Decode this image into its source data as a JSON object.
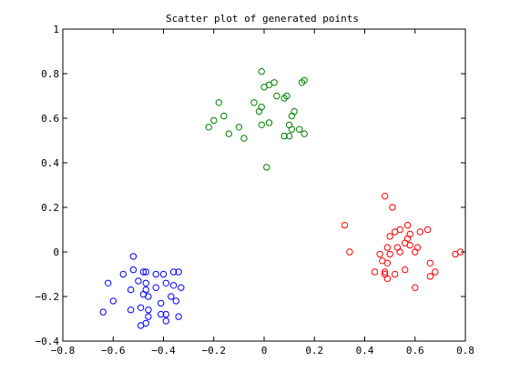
{
  "chart_data": {
    "type": "scatter",
    "title": "Scatter plot of generated points",
    "xlabel": "",
    "ylabel": "",
    "xlim": [
      -0.8,
      0.8
    ],
    "ylim": [
      -0.4,
      1.0
    ],
    "grid": false,
    "box": true,
    "marker": "open-circle",
    "x_ticks": [
      {
        "value": -0.8,
        "label": "−0.8"
      },
      {
        "value": -0.6,
        "label": "−0.6"
      },
      {
        "value": -0.4,
        "label": "−0.4"
      },
      {
        "value": -0.2,
        "label": "−0.2"
      },
      {
        "value": 0.0,
        "label": "0"
      },
      {
        "value": 0.2,
        "label": "0.2"
      },
      {
        "value": 0.4,
        "label": "0.4"
      },
      {
        "value": 0.6,
        "label": "0.6"
      },
      {
        "value": 0.8,
        "label": "0.8"
      }
    ],
    "y_ticks": [
      {
        "value": -0.4,
        "label": "−0.4"
      },
      {
        "value": -0.2,
        "label": "−0.2"
      },
      {
        "value": 0.0,
        "label": "0"
      },
      {
        "value": 0.2,
        "label": "0.2"
      },
      {
        "value": 0.4,
        "label": "0.4"
      },
      {
        "value": 0.6,
        "label": "0.6"
      },
      {
        "value": 0.8,
        "label": "0.8"
      },
      {
        "value": 1.0,
        "label": "1"
      }
    ],
    "series": [
      {
        "color": "#0000ff",
        "points": [
          [
            -0.52,
            -0.02
          ],
          [
            -0.56,
            -0.1
          ],
          [
            -0.52,
            -0.08
          ],
          [
            -0.48,
            -0.09
          ],
          [
            -0.47,
            -0.09
          ],
          [
            -0.43,
            -0.1
          ],
          [
            -0.4,
            -0.1
          ],
          [
            -0.36,
            -0.09
          ],
          [
            -0.34,
            -0.09
          ],
          [
            -0.62,
            -0.14
          ],
          [
            -0.5,
            -0.13
          ],
          [
            -0.47,
            -0.14
          ],
          [
            -0.43,
            -0.16
          ],
          [
            -0.39,
            -0.14
          ],
          [
            -0.36,
            -0.15
          ],
          [
            -0.33,
            -0.16
          ],
          [
            -0.6,
            -0.22
          ],
          [
            -0.53,
            -0.17
          ],
          [
            -0.47,
            -0.17
          ],
          [
            -0.48,
            -0.19
          ],
          [
            -0.46,
            -0.2
          ],
          [
            -0.49,
            -0.25
          ],
          [
            -0.53,
            -0.26
          ],
          [
            -0.46,
            -0.26
          ],
          [
            -0.41,
            -0.23
          ],
          [
            -0.37,
            -0.2
          ],
          [
            -0.35,
            -0.22
          ],
          [
            -0.64,
            -0.27
          ],
          [
            -0.46,
            -0.29
          ],
          [
            -0.41,
            -0.28
          ],
          [
            -0.39,
            -0.28
          ],
          [
            -0.39,
            -0.31
          ],
          [
            -0.47,
            -0.32
          ],
          [
            -0.49,
            -0.33
          ],
          [
            -0.34,
            -0.29
          ]
        ]
      },
      {
        "color": "#008000",
        "points": [
          [
            -0.01,
            0.81
          ],
          [
            0.04,
            0.76
          ],
          [
            0.02,
            0.75
          ],
          [
            0.0,
            0.74
          ],
          [
            0.16,
            0.77
          ],
          [
            0.15,
            0.76
          ],
          [
            0.09,
            0.7
          ],
          [
            0.05,
            0.7
          ],
          [
            0.08,
            0.69
          ],
          [
            -0.18,
            0.67
          ],
          [
            -0.04,
            0.67
          ],
          [
            -0.01,
            0.65
          ],
          [
            -0.02,
            0.63
          ],
          [
            0.12,
            0.63
          ],
          [
            0.11,
            0.61
          ],
          [
            -0.16,
            0.61
          ],
          [
            -0.2,
            0.59
          ],
          [
            -0.22,
            0.56
          ],
          [
            -0.1,
            0.56
          ],
          [
            -0.01,
            0.57
          ],
          [
            0.02,
            0.58
          ],
          [
            0.1,
            0.57
          ],
          [
            0.11,
            0.55
          ],
          [
            0.14,
            0.55
          ],
          [
            -0.14,
            0.53
          ],
          [
            -0.08,
            0.51
          ],
          [
            0.08,
            0.52
          ],
          [
            0.1,
            0.52
          ],
          [
            0.16,
            0.53
          ],
          [
            0.01,
            0.38
          ]
        ]
      },
      {
        "color": "#ff0000",
        "points": [
          [
            0.48,
            0.25
          ],
          [
            0.51,
            0.2
          ],
          [
            0.32,
            0.12
          ],
          [
            0.57,
            0.12
          ],
          [
            0.54,
            0.1
          ],
          [
            0.52,
            0.09
          ],
          [
            0.62,
            0.09
          ],
          [
            0.65,
            0.1
          ],
          [
            0.5,
            0.07
          ],
          [
            0.58,
            0.08
          ],
          [
            0.57,
            0.06
          ],
          [
            0.56,
            0.04
          ],
          [
            0.49,
            0.02
          ],
          [
            0.53,
            0.02
          ],
          [
            0.58,
            0.03
          ],
          [
            0.6,
            0.0
          ],
          [
            0.34,
            0.0
          ],
          [
            0.46,
            -0.01
          ],
          [
            0.5,
            -0.01
          ],
          [
            0.54,
            0.0
          ],
          [
            0.61,
            0.02
          ],
          [
            0.76,
            -0.01
          ],
          [
            0.78,
            0.0
          ],
          [
            0.47,
            -0.04
          ],
          [
            0.49,
            -0.05
          ],
          [
            0.66,
            -0.05
          ],
          [
            0.44,
            -0.09
          ],
          [
            0.48,
            -0.09
          ],
          [
            0.56,
            -0.08
          ],
          [
            0.68,
            -0.09
          ],
          [
            0.48,
            -0.1
          ],
          [
            0.49,
            -0.12
          ],
          [
            0.52,
            -0.1
          ],
          [
            0.66,
            -0.11
          ],
          [
            0.6,
            -0.16
          ]
        ]
      }
    ]
  }
}
